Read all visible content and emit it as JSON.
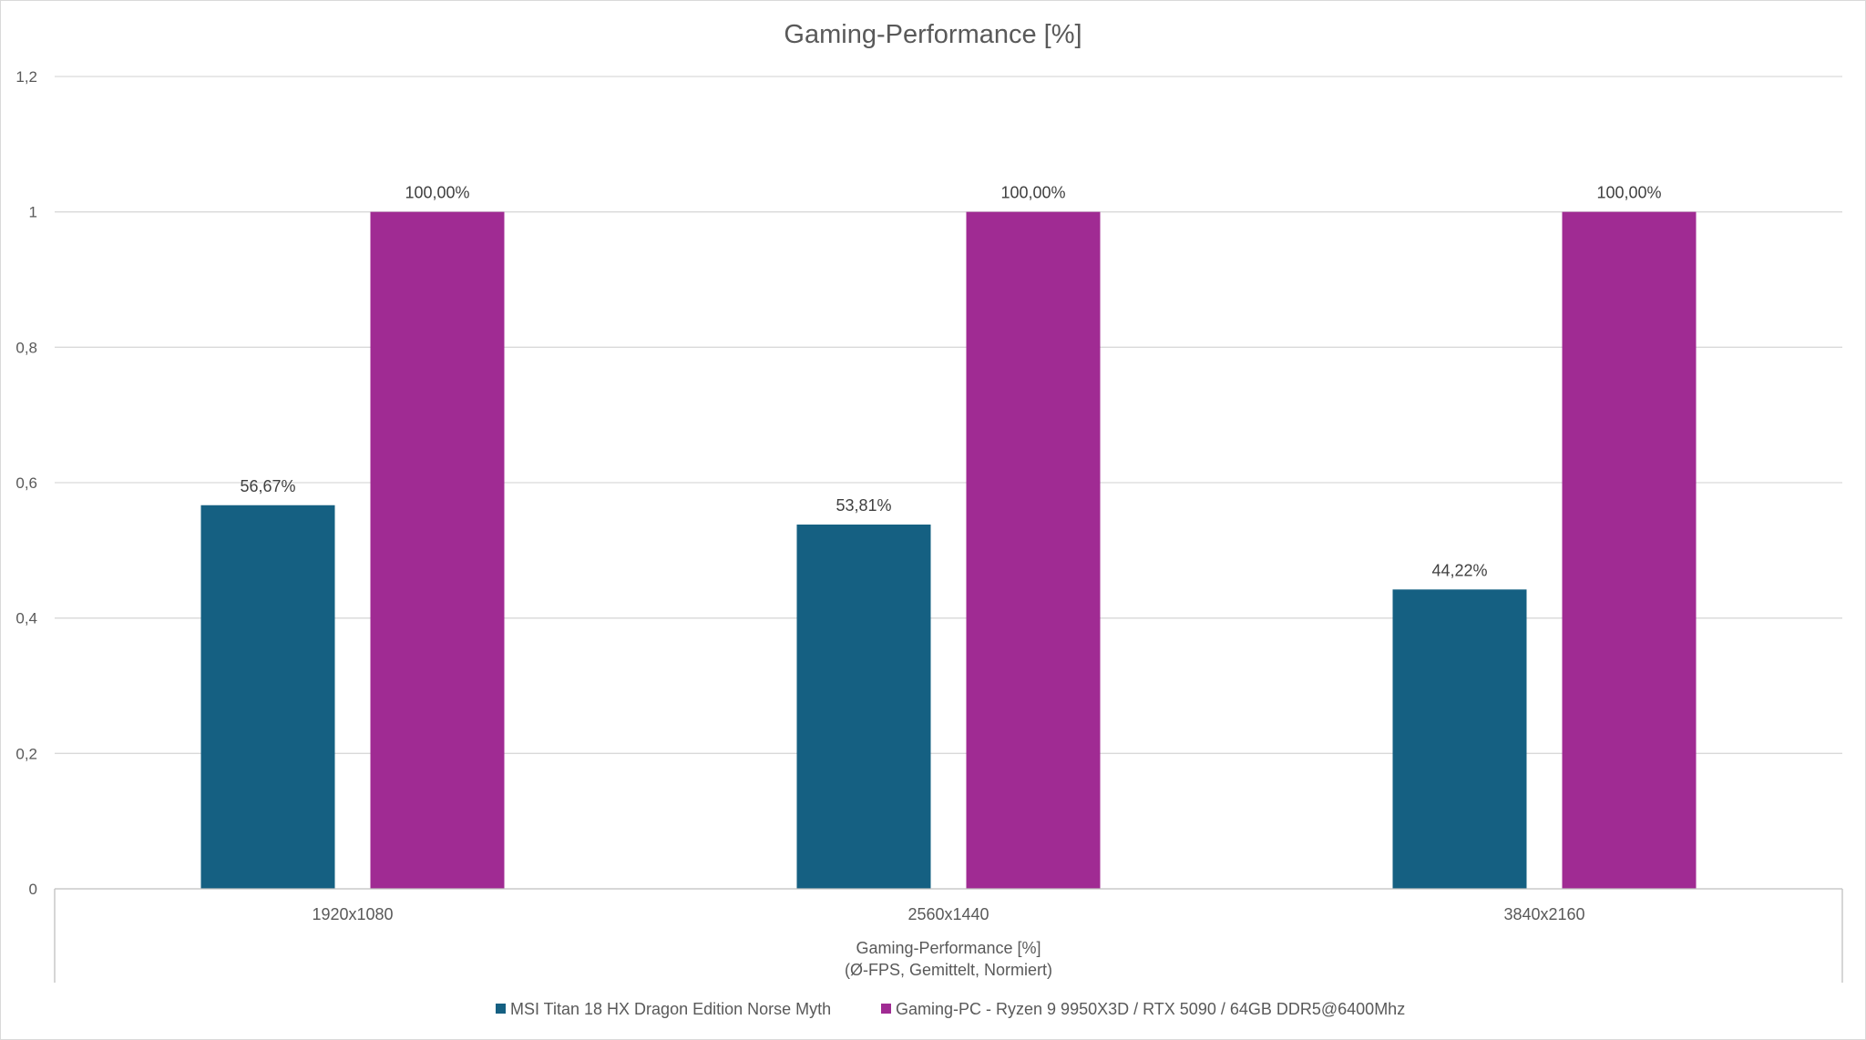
{
  "chart_data": {
    "type": "bar",
    "title": "Gaming-Performance  [%]",
    "xlabel_lines": [
      "Gaming-Performance [%]",
      "(Ø-FPS, Gemittelt, Normiert)"
    ],
    "ylabel": "",
    "categories": [
      "1920x1080",
      "2560x1440",
      "3840x2160"
    ],
    "series": [
      {
        "name": "MSI Titan 18 HX Dragon Edition Norse Myth",
        "color": "#156082",
        "values": [
          0.5667,
          0.5381,
          0.4422
        ],
        "labels": [
          "56,67%",
          "53,81%",
          "44,22%"
        ]
      },
      {
        "name": "Gaming-PC - Ryzen 9 9950X3D / RTX 5090 / 64GB DDR5@6400Mhz",
        "color": "#A02B93",
        "values": [
          1.0,
          1.0,
          1.0
        ],
        "labels": [
          "100,00%",
          "100,00%",
          "100,00%"
        ]
      }
    ],
    "ylim": [
      0,
      1.2
    ],
    "yticks": [
      0,
      0.2,
      0.4,
      0.6,
      0.8,
      1,
      1.2
    ],
    "ytick_labels": [
      "0",
      "0,2",
      "0,4",
      "0,6",
      "0,8",
      "1",
      "1,2"
    ],
    "grid": true,
    "legend_position": "bottom"
  }
}
